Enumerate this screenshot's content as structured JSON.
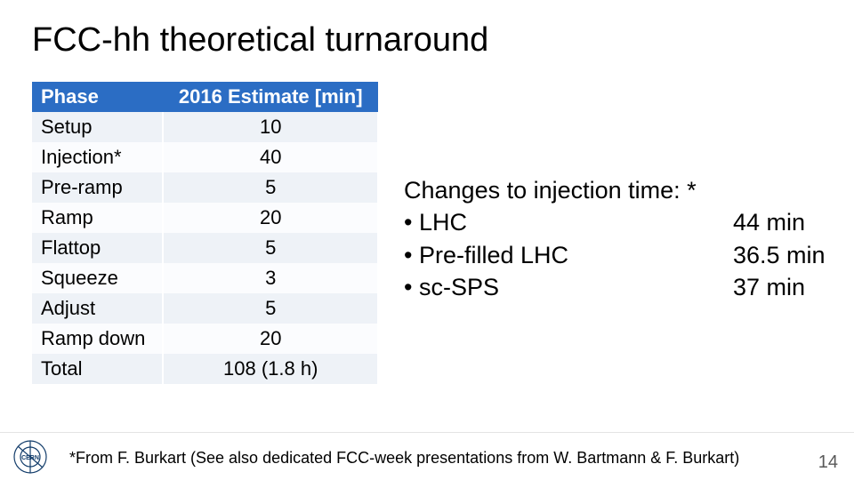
{
  "title": "FCC-hh theoretical turnaround",
  "table": {
    "header_color": "#2b6dc4",
    "row_even_color": "#eef2f7",
    "row_odd_color": "#fbfcfe",
    "columns": [
      "Phase",
      "2016 Estimate [min]"
    ],
    "rows": [
      [
        "Setup",
        "10"
      ],
      [
        "Injection*",
        "40"
      ],
      [
        "Pre-ramp",
        "5"
      ],
      [
        "Ramp",
        "20"
      ],
      [
        "Flattop",
        "5"
      ],
      [
        "Squeeze",
        "3"
      ],
      [
        "Adjust",
        "5"
      ],
      [
        "Ramp down",
        "20"
      ],
      [
        "Total",
        "108 (1.8 h)"
      ]
    ]
  },
  "changes": {
    "heading": "Changes to injection time: *",
    "items": [
      {
        "label": "LHC",
        "value": "44 min"
      },
      {
        "label": "Pre-filled LHC",
        "value": "36.5 min"
      },
      {
        "label": "sc-SPS",
        "value": "37 min"
      }
    ]
  },
  "footnote": "*From F. Burkart (See also dedicated FCC-week presentations from W. Bartmann & F. Burkart)",
  "page_number": "14",
  "logo_color": "#133d6b"
}
